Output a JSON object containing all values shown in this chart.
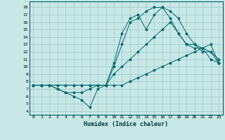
{
  "xlabel": "Humidex (Indice chaleur)",
  "bg_color": "#c8e8e8",
  "grid_color": "#a0c8c8",
  "line_color": "#006868",
  "xlim": [
    -0.5,
    23.5
  ],
  "ylim": [
    3.5,
    18.8
  ],
  "yticks": [
    4,
    5,
    6,
    7,
    8,
    9,
    10,
    11,
    12,
    13,
    14,
    15,
    16,
    17,
    18
  ],
  "xticks": [
    0,
    1,
    2,
    3,
    4,
    5,
    6,
    7,
    8,
    9,
    10,
    11,
    12,
    13,
    14,
    15,
    16,
    17,
    18,
    19,
    20,
    21,
    22,
    23
  ],
  "series": [
    {
      "x": [
        0,
        1,
        2,
        3,
        4,
        5,
        6,
        7,
        8,
        9,
        10,
        11,
        12,
        13,
        14,
        15,
        16,
        17,
        18,
        19,
        20,
        21,
        22,
        23
      ],
      "y": [
        7.5,
        7.5,
        7.5,
        7.5,
        7.5,
        7.5,
        7.5,
        7.5,
        7.5,
        7.5,
        7.5,
        7.5,
        8.0,
        8.5,
        9.0,
        9.5,
        10.0,
        10.5,
        11.0,
        11.5,
        12.0,
        12.5,
        13.0,
        10.5
      ]
    },
    {
      "x": [
        0,
        1,
        2,
        3,
        4,
        5,
        6,
        7,
        8,
        9,
        10,
        11,
        12,
        13,
        14,
        15,
        16,
        17,
        18,
        19,
        20,
        21,
        22,
        23
      ],
      "y": [
        7.5,
        7.5,
        7.5,
        7.5,
        7.5,
        7.5,
        7.5,
        7.5,
        7.5,
        7.5,
        9.0,
        10.0,
        11.0,
        12.0,
        13.0,
        14.0,
        15.0,
        16.0,
        14.5,
        13.0,
        13.0,
        12.0,
        12.0,
        11.0
      ]
    },
    {
      "x": [
        0,
        1,
        2,
        3,
        4,
        5,
        6,
        7,
        8,
        9,
        10,
        11,
        12,
        13,
        14,
        15,
        16,
        17,
        18,
        19,
        20,
        21,
        22,
        23
      ],
      "y": [
        7.5,
        7.5,
        7.5,
        7.0,
        6.5,
        6.5,
        6.5,
        7.0,
        7.5,
        7.5,
        10.0,
        13.0,
        16.0,
        16.5,
        17.5,
        18.0,
        18.0,
        16.5,
        14.5,
        13.0,
        12.5,
        12.5,
        11.0,
        10.5
      ]
    },
    {
      "x": [
        0,
        1,
        2,
        3,
        4,
        5,
        6,
        7,
        8,
        9,
        10,
        11,
        12,
        13,
        14,
        15,
        16,
        17,
        18,
        19,
        20,
        21,
        22,
        23
      ],
      "y": [
        7.5,
        7.5,
        7.5,
        7.0,
        6.5,
        6.0,
        5.5,
        4.5,
        7.0,
        7.5,
        10.5,
        14.5,
        16.5,
        17.0,
        15.0,
        17.0,
        18.0,
        17.5,
        16.5,
        14.5,
        13.0,
        12.5,
        12.0,
        10.5
      ]
    }
  ]
}
